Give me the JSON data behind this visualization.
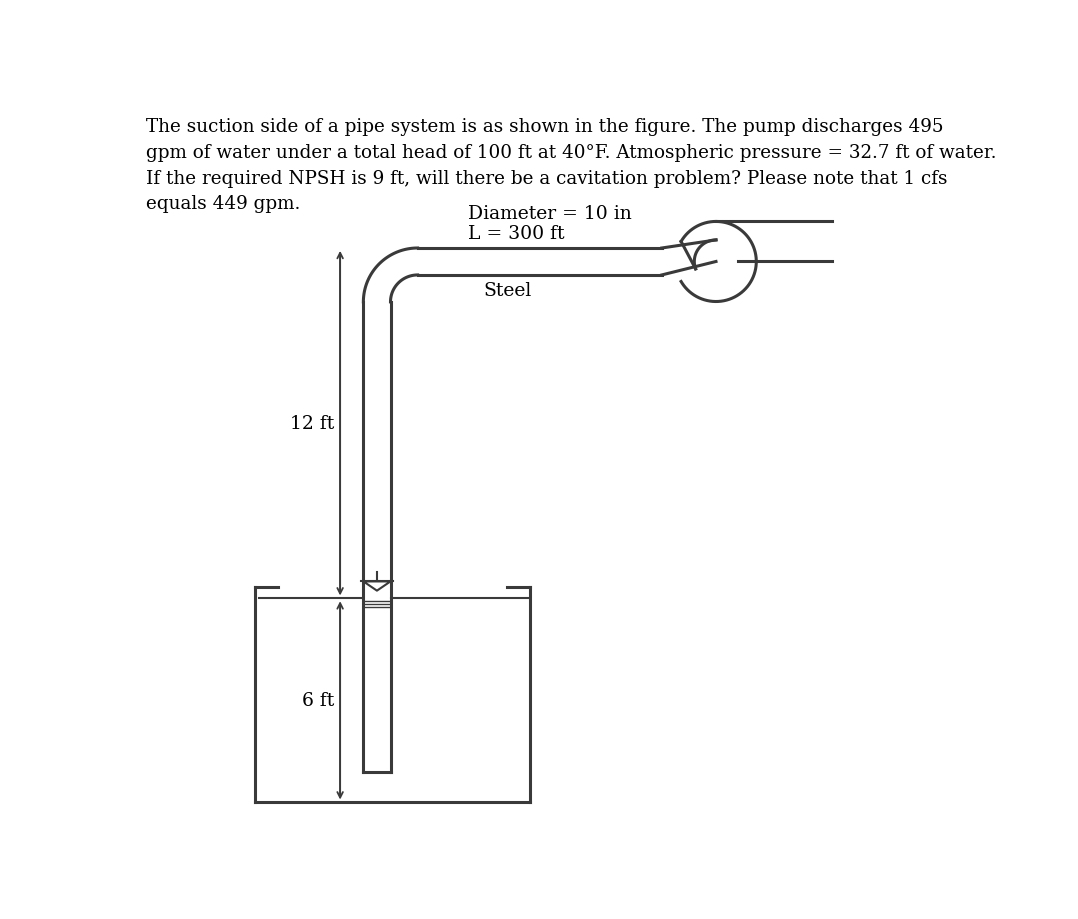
{
  "title_text": "The suction side of a pipe system is as shown in the figure. The pump discharges 495\ngpm of water under a total head of 100 ft at 40°F. Atmospheric pressure = 32.7 ft of water.\nIf the required NPSH is 9 ft, will there be a cavitation problem? Please note that 1 cfs\nequals 449 gpm.",
  "label_diameter": "Diameter = 10 in",
  "label_L": "L = 300 ft",
  "label_steel": "Steel",
  "label_12ft": "12 ft",
  "label_6ft": "6 ft",
  "line_color": "#3a3a3a",
  "bg_color": "#ffffff",
  "lw": 2.2,
  "lw_thin": 1.5
}
